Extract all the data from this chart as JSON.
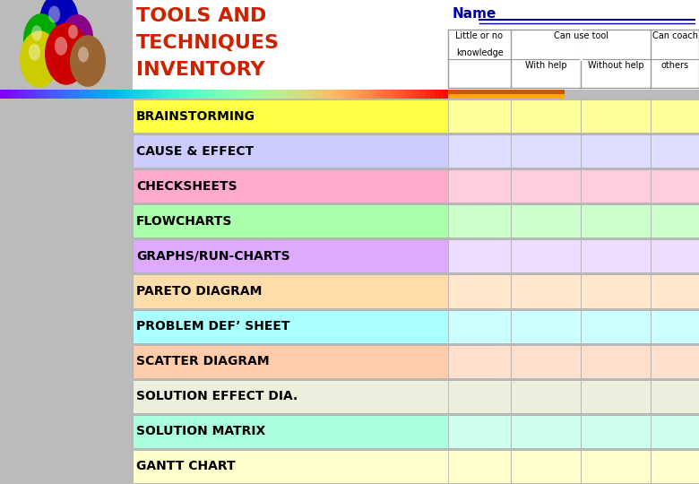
{
  "title_line1": "TOOLS AND",
  "title_line2": "TECHNIQUES",
  "title_line3": "INVENTORY",
  "title_color": "#CC2200",
  "name_label": "Name",
  "name_color": "#000099",
  "header_col1": "Little or no\nknowledge",
  "header_col2a": "Can use tool",
  "header_col2b": "With help",
  "header_col2c": "Without help",
  "header_col3": "Can coach\nothers",
  "rows": [
    {
      "label": "BRAINSTORMING",
      "bg": "#FFFF44"
    },
    {
      "label": "CAUSE & EFFECT",
      "bg": "#CCCCFF"
    },
    {
      "label": "CHECKSHEETS",
      "bg": "#FFAACC"
    },
    {
      "label": "FLOWCHARTS",
      "bg": "#AAFFAA"
    },
    {
      "label": "GRAPHS/RUN-CHARTS",
      "bg": "#DDAAFF"
    },
    {
      "label": "PARETO DIAGRAM",
      "bg": "#FFDDAA"
    },
    {
      "label": "PROBLEM DEF’ SHEET",
      "bg": "#AAFFFF"
    },
    {
      "label": "SCATTER DIAGRAM",
      "bg": "#FFCCAA"
    },
    {
      "label": "SOLUTION EFFECT DIA.",
      "bg": "#EEEEDD"
    },
    {
      "label": "SOLUTION MATRIX",
      "bg": "#AAFFDD"
    },
    {
      "label": "GANTT CHART",
      "bg": "#FFFFCC"
    }
  ],
  "cell_colors": [
    "#FFFF99",
    "#DDDDFF",
    "#FFCCDD",
    "#CCFFCC",
    "#EEDDFF",
    "#FFE8CC",
    "#CCFFFF",
    "#FFE0CC",
    "#EEEEDD",
    "#CCFFEE",
    "#FFFFCC"
  ],
  "bg_color": "#BBBBBB",
  "white_bg": "#FFFFFF"
}
